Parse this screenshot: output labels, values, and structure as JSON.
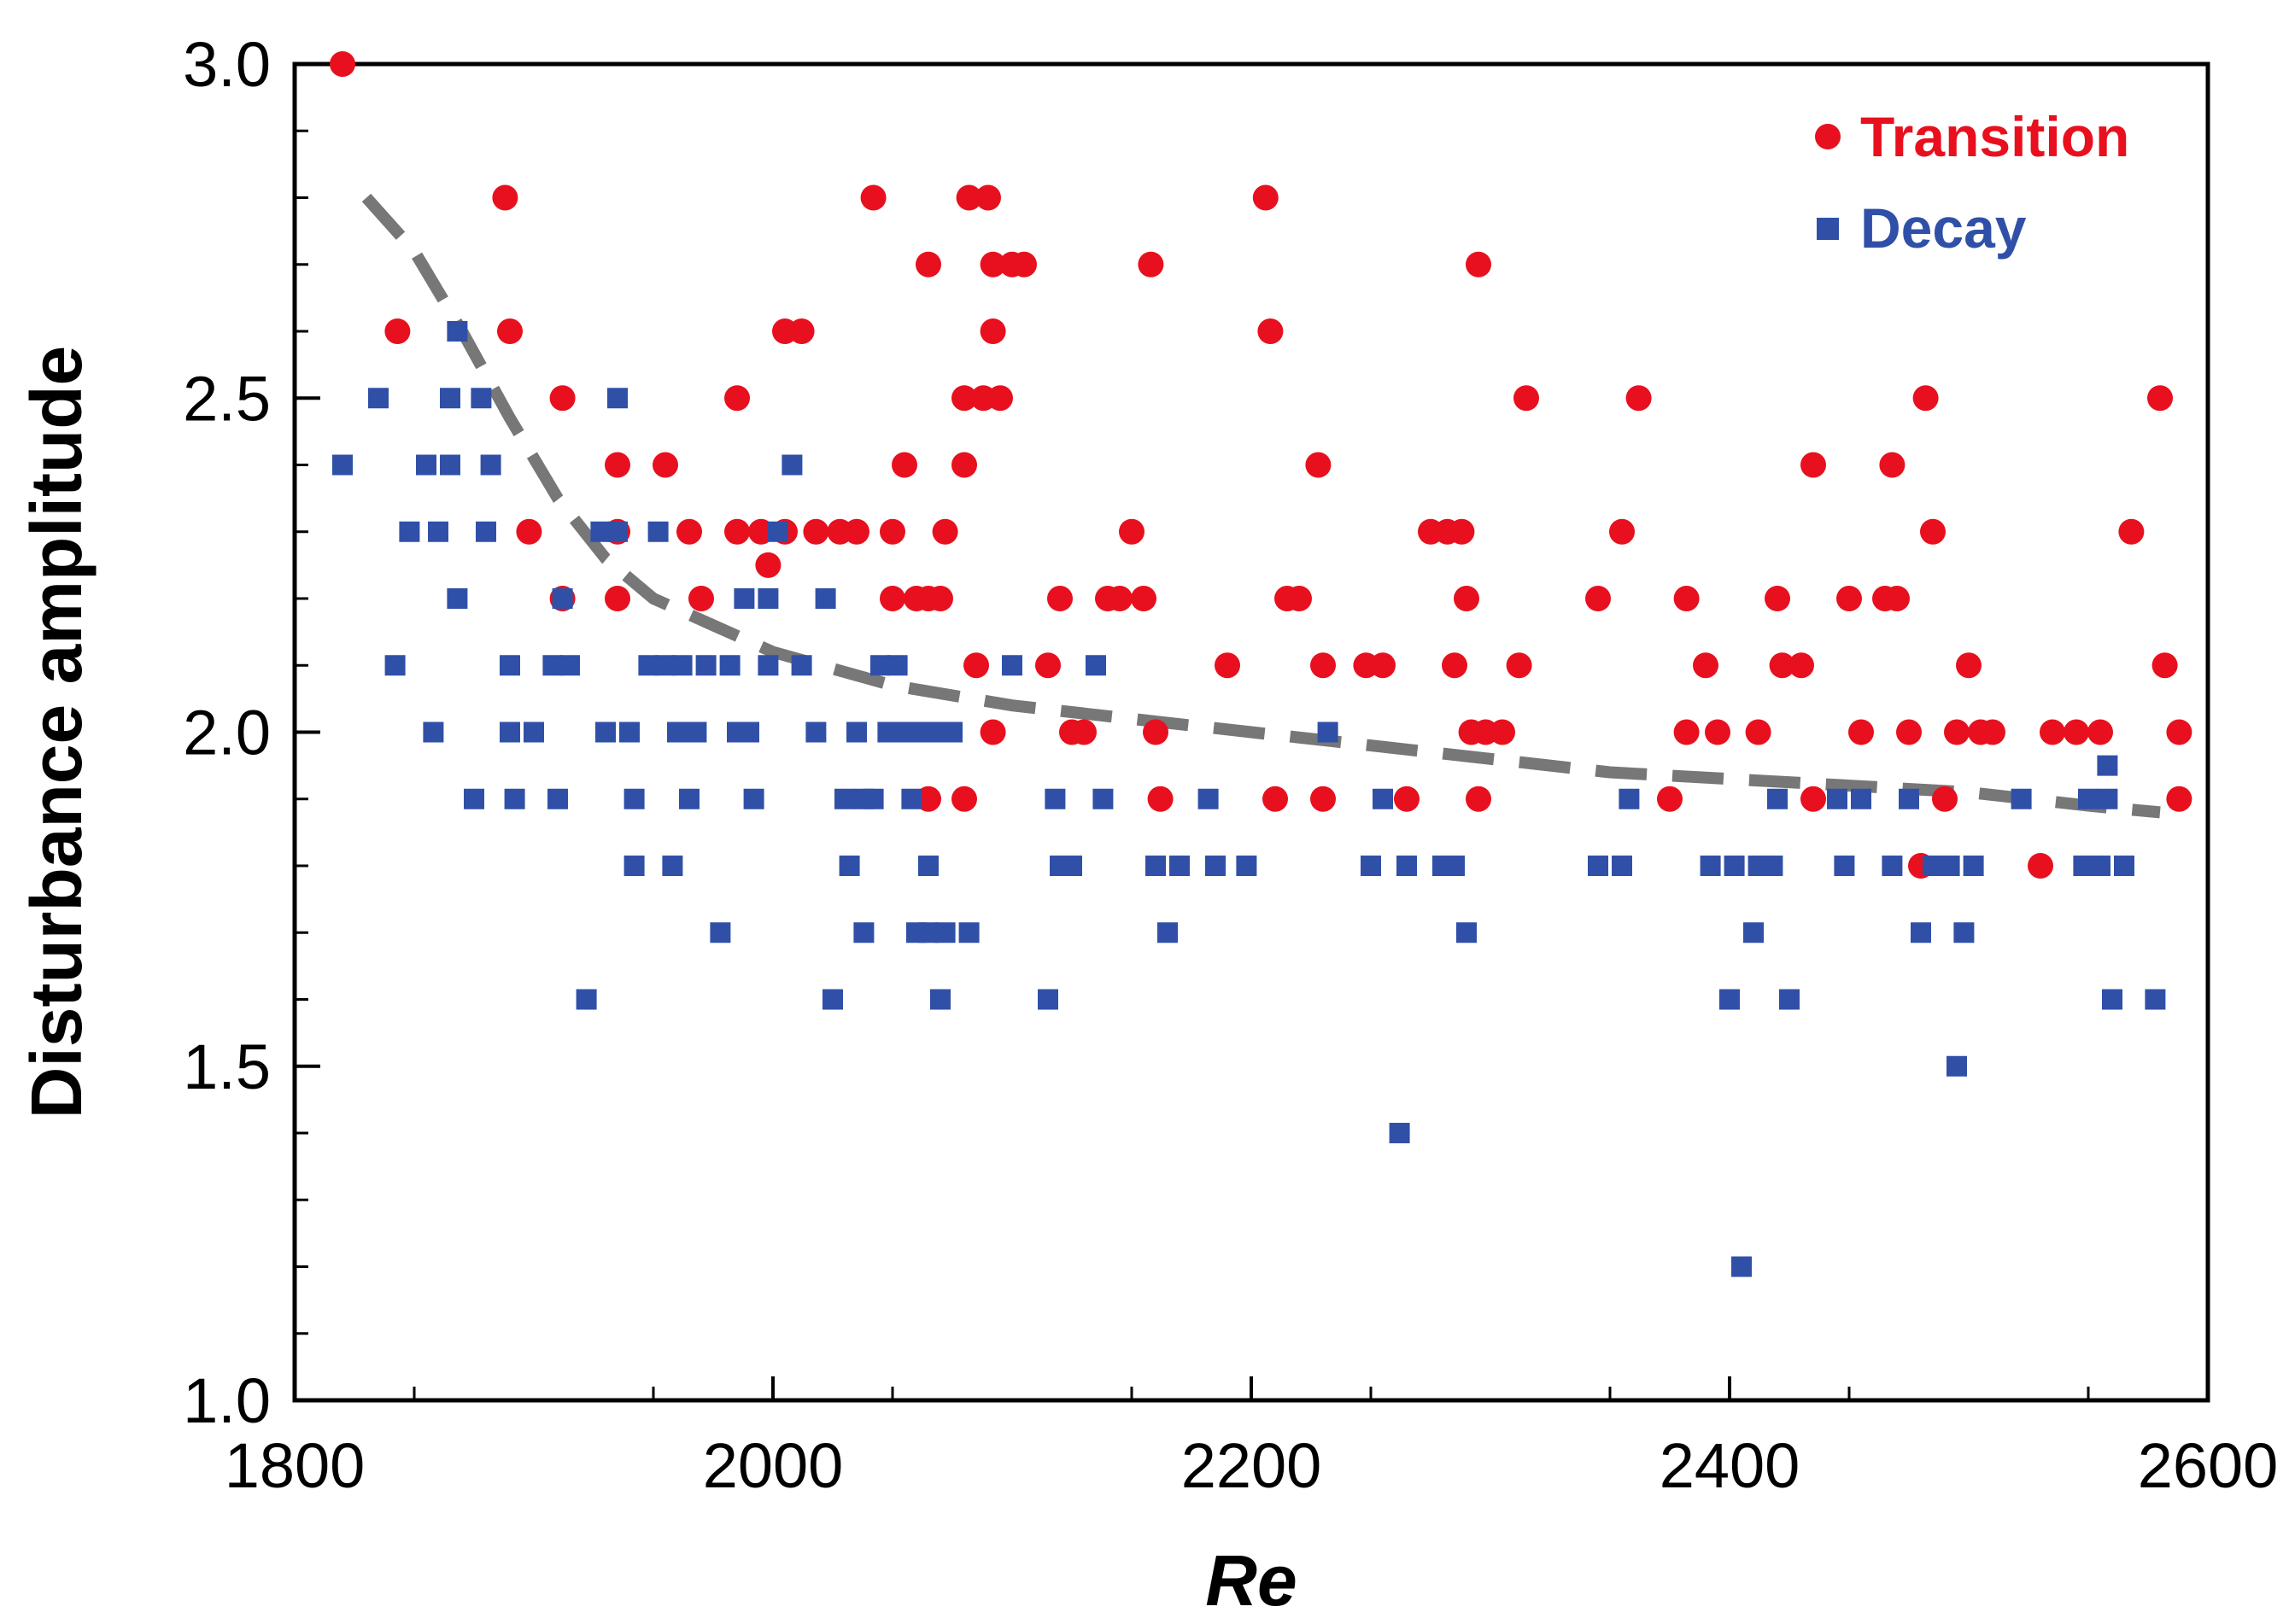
{
  "chart_data": {
    "type": "scatter",
    "title": "",
    "xlabel": "Re",
    "ylabel": "Disturbance amplitude",
    "xlim": [
      1800,
      2600
    ],
    "ylim": [
      1.0,
      3.0
    ],
    "x_ticks": [
      "1800",
      "2000",
      "2200",
      "2400",
      "2600"
    ],
    "y_ticks": [
      "1.0",
      "1.5",
      "2.0",
      "2.5",
      "3.0"
    ],
    "legend_position": "top-right",
    "colors": {
      "transition": "#e8101e",
      "decay": "#3050a8",
      "fit": "#777777"
    },
    "series": [
      {
        "name": "Transition",
        "marker": "circle",
        "points": [
          [
            1820,
            3.0
          ],
          [
            1888,
            2.8
          ],
          [
            1843,
            2.6
          ],
          [
            1890,
            2.6
          ],
          [
            1912,
            2.5
          ],
          [
            1898,
            2.3
          ],
          [
            1912,
            2.2
          ],
          [
            1935,
            2.3
          ],
          [
            1935,
            2.2
          ],
          [
            1935,
            2.4
          ],
          [
            1955,
            2.4
          ],
          [
            1965,
            2.3
          ],
          [
            1970,
            2.2
          ],
          [
            1985,
            2.5
          ],
          [
            1985,
            2.3
          ],
          [
            1995,
            2.3
          ],
          [
            1998,
            2.25
          ],
          [
            2005,
            2.3
          ],
          [
            2005,
            2.6
          ],
          [
            2012,
            2.6
          ],
          [
            2018,
            2.3
          ],
          [
            2028,
            2.3
          ],
          [
            2035,
            2.3
          ],
          [
            2042,
            2.8
          ],
          [
            2050,
            2.3
          ],
          [
            2050,
            2.2
          ],
          [
            2055,
            2.4
          ],
          [
            2060,
            2.2
          ],
          [
            2065,
            2.2
          ],
          [
            2065,
            2.7
          ],
          [
            2070,
            2.2
          ],
          [
            2072,
            2.3
          ],
          [
            2080,
            2.4
          ],
          [
            2080,
            2.5
          ],
          [
            2082,
            2.8
          ],
          [
            2088,
            2.5
          ],
          [
            2090,
            2.8
          ],
          [
            2092,
            2.7
          ],
          [
            2092,
            2.6
          ],
          [
            2095,
            2.5
          ],
          [
            2100,
            2.7
          ],
          [
            2085,
            2.1
          ],
          [
            2092,
            2.0
          ],
          [
            2105,
            2.7
          ],
          [
            2115,
            2.1
          ],
          [
            2120,
            2.2
          ],
          [
            2125,
            2.0
          ],
          [
            2130,
            2.0
          ],
          [
            2140,
            2.2
          ],
          [
            2145,
            2.2
          ],
          [
            2150,
            2.3
          ],
          [
            2155,
            2.2
          ],
          [
            2158,
            2.7
          ],
          [
            2160,
            2.0
          ],
          [
            2162,
            1.9
          ],
          [
            2190,
            2.1
          ],
          [
            2206,
            2.8
          ],
          [
            2208,
            2.6
          ],
          [
            2215,
            2.2
          ],
          [
            2220,
            2.2
          ],
          [
            2228,
            2.4
          ],
          [
            2230,
            2.1
          ],
          [
            2230,
            1.9
          ],
          [
            2248,
            2.1
          ],
          [
            2255,
            2.1
          ],
          [
            2265,
            1.9
          ],
          [
            2275,
            2.3
          ],
          [
            2282,
            2.3
          ],
          [
            2285,
            2.1
          ],
          [
            2288,
            2.3
          ],
          [
            2290,
            2.2
          ],
          [
            2292,
            2.0
          ],
          [
            2295,
            2.7
          ],
          [
            2298,
            2.0
          ],
          [
            2305,
            2.0
          ],
          [
            2312,
            2.1
          ],
          [
            2315,
            2.5
          ],
          [
            2345,
            2.2
          ],
          [
            2355,
            2.3
          ],
          [
            2362,
            2.5
          ],
          [
            2375,
            1.9
          ],
          [
            2382,
            2.2
          ],
          [
            2382,
            2.0
          ],
          [
            2390,
            2.1
          ],
          [
            2395,
            2.0
          ],
          [
            2412,
            2.0
          ],
          [
            2420,
            2.2
          ],
          [
            2422,
            2.1
          ],
          [
            2430,
            2.1
          ],
          [
            2435,
            2.4
          ],
          [
            2450,
            2.2
          ],
          [
            2455,
            2.0
          ],
          [
            2465,
            2.2
          ],
          [
            2468,
            2.4
          ],
          [
            2470,
            2.2
          ],
          [
            2475,
            2.0
          ],
          [
            2482,
            2.5
          ],
          [
            2485,
            2.3
          ],
          [
            2490,
            1.9
          ],
          [
            2495,
            2.0
          ],
          [
            2500,
            2.1
          ],
          [
            2505,
            2.0
          ],
          [
            2510,
            2.0
          ],
          [
            2530,
            1.8
          ],
          [
            2535,
            2.0
          ],
          [
            2545,
            2.0
          ],
          [
            2555,
            2.0
          ],
          [
            2568,
            2.3
          ],
          [
            2580,
            2.5
          ],
          [
            2582,
            2.1
          ],
          [
            2588,
            2.0
          ],
          [
            2588,
            1.9
          ],
          [
            2435,
            1.9
          ],
          [
            2480,
            1.8
          ],
          [
            2080,
            1.9
          ],
          [
            2065,
            1.9
          ],
          [
            2210,
            1.9
          ],
          [
            2295,
            1.9
          ]
        ]
      },
      {
        "name": "Decay",
        "marker": "square",
        "points": [
          [
            1820,
            2.4
          ],
          [
            1835,
            2.5
          ],
          [
            1842,
            2.1
          ],
          [
            1848,
            2.3
          ],
          [
            1855,
            2.4
          ],
          [
            1860,
            2.3
          ],
          [
            1858,
            2.0
          ],
          [
            1865,
            2.5
          ],
          [
            1865,
            2.4
          ],
          [
            1868,
            2.6
          ],
          [
            1868,
            2.2
          ],
          [
            1878,
            2.5
          ],
          [
            1880,
            2.3
          ],
          [
            1882,
            2.4
          ],
          [
            1875,
            1.9
          ],
          [
            1890,
            2.1
          ],
          [
            1890,
            2.0
          ],
          [
            1892,
            1.9
          ],
          [
            1900,
            2.0
          ],
          [
            1908,
            2.1
          ],
          [
            1910,
            1.9
          ],
          [
            1912,
            2.2
          ],
          [
            1915,
            2.1
          ],
          [
            1922,
            1.6
          ],
          [
            1928,
            2.3
          ],
          [
            1930,
            2.0
          ],
          [
            1935,
            2.3
          ],
          [
            1935,
            2.5
          ],
          [
            1940,
            2.0
          ],
          [
            1942,
            1.9
          ],
          [
            1942,
            1.8
          ],
          [
            1948,
            2.1
          ],
          [
            1952,
            2.3
          ],
          [
            1955,
            2.1
          ],
          [
            1958,
            1.8
          ],
          [
            1960,
            2.0
          ],
          [
            1962,
            2.1
          ],
          [
            1965,
            1.9
          ],
          [
            1968,
            2.0
          ],
          [
            1972,
            2.1
          ],
          [
            1978,
            1.7
          ],
          [
            1982,
            2.1
          ],
          [
            1985,
            2.0
          ],
          [
            1988,
            2.2
          ],
          [
            1990,
            2.0
          ],
          [
            1992,
            1.9
          ],
          [
            1998,
            2.2
          ],
          [
            1998,
            2.1
          ],
          [
            2002,
            2.3
          ],
          [
            2008,
            2.4
          ],
          [
            2012,
            2.1
          ],
          [
            2018,
            2.0
          ],
          [
            2022,
            2.2
          ],
          [
            2025,
            1.6
          ],
          [
            2030,
            1.9
          ],
          [
            2032,
            1.8
          ],
          [
            2035,
            2.0
          ],
          [
            2038,
            1.9
          ],
          [
            2038,
            1.7
          ],
          [
            2042,
            1.9
          ],
          [
            2045,
            2.1
          ],
          [
            2048,
            2.0
          ],
          [
            2052,
            2.1
          ],
          [
            2055,
            2.0
          ],
          [
            2058,
            1.9
          ],
          [
            2060,
            1.7
          ],
          [
            2062,
            2.0
          ],
          [
            2065,
            1.8
          ],
          [
            2065,
            1.7
          ],
          [
            2068,
            2.0
          ],
          [
            2070,
            1.6
          ],
          [
            2072,
            1.7
          ],
          [
            2075,
            2.0
          ],
          [
            2082,
            1.7
          ],
          [
            2100,
            2.1
          ],
          [
            2115,
            1.6
          ],
          [
            2118,
            1.9
          ],
          [
            2120,
            1.8
          ],
          [
            2125,
            1.8
          ],
          [
            2135,
            2.1
          ],
          [
            2138,
            1.9
          ],
          [
            2160,
            1.8
          ],
          [
            2165,
            1.7
          ],
          [
            2170,
            1.8
          ],
          [
            2182,
            1.9
          ],
          [
            2185,
            1.8
          ],
          [
            2198,
            1.8
          ],
          [
            2232,
            2.0
          ],
          [
            2250,
            1.8
          ],
          [
            2255,
            1.9
          ],
          [
            2262,
            1.4
          ],
          [
            2265,
            1.8
          ],
          [
            2280,
            1.8
          ],
          [
            2285,
            1.8
          ],
          [
            2290,
            1.7
          ],
          [
            2355,
            1.8
          ],
          [
            2345,
            1.8
          ],
          [
            2358,
            1.9
          ],
          [
            2392,
            1.8
          ],
          [
            2400,
            1.6
          ],
          [
            2402,
            1.8
          ],
          [
            2405,
            1.2
          ],
          [
            2410,
            1.7
          ],
          [
            2412,
            1.8
          ],
          [
            2418,
            1.8
          ],
          [
            2420,
            1.9
          ],
          [
            2425,
            1.6
          ],
          [
            2445,
            1.9
          ],
          [
            2448,
            1.8
          ],
          [
            2455,
            1.9
          ],
          [
            2468,
            1.8
          ],
          [
            2475,
            1.9
          ],
          [
            2480,
            1.7
          ],
          [
            2485,
            1.8
          ],
          [
            2492,
            1.8
          ],
          [
            2495,
            1.5
          ],
          [
            2498,
            1.7
          ],
          [
            2502,
            1.8
          ],
          [
            2522,
            1.9
          ],
          [
            2548,
            1.8
          ],
          [
            2555,
            1.8
          ],
          [
            2558,
            1.95
          ],
          [
            2558,
            1.9
          ],
          [
            2560,
            1.6
          ],
          [
            2565,
            1.8
          ],
          [
            2578,
            1.6
          ],
          [
            2550,
            1.9
          ]
        ]
      }
    ],
    "fit_curve": {
      "name": "threshold fit",
      "style": "dashed",
      "points": [
        [
          1830,
          2.8
        ],
        [
          1850,
          2.72
        ],
        [
          1870,
          2.6
        ],
        [
          1890,
          2.47
        ],
        [
          1910,
          2.35
        ],
        [
          1930,
          2.26
        ],
        [
          1950,
          2.2
        ],
        [
          1975,
          2.16
        ],
        [
          2000,
          2.12
        ],
        [
          2050,
          2.07
        ],
        [
          2100,
          2.04
        ],
        [
          2150,
          2.02
        ],
        [
          2200,
          2.0
        ],
        [
          2250,
          1.98
        ],
        [
          2300,
          1.96
        ],
        [
          2350,
          1.94
        ],
        [
          2400,
          1.93
        ],
        [
          2450,
          1.92
        ],
        [
          2500,
          1.91
        ],
        [
          2550,
          1.89
        ],
        [
          2580,
          1.88
        ]
      ]
    }
  }
}
